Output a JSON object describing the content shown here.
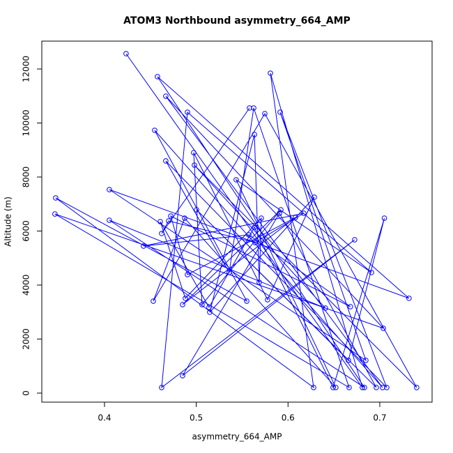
{
  "chart_data": {
    "type": "line",
    "title": "ATOM3 Northbound asymmetry_664_AMP",
    "xlabel": "asymmetry_664_AMP",
    "ylabel": "Altitude (m)",
    "color": "#0000ff",
    "marker": "circle",
    "x": [
      0.4235,
      0.681,
      0.5808,
      0.6279,
      0.3468,
      0.555,
      0.4547,
      0.703,
      0.4668,
      0.7038,
      0.346,
      0.6666,
      0.5626,
      0.5359,
      0.4668,
      0.7076,
      0.5914,
      0.6848,
      0.4053,
      0.7318,
      0.4577,
      0.6833,
      0.4053,
      0.6407,
      0.498,
      0.7402,
      0.5747,
      0.4532,
      0.4874,
      0.6521,
      0.5435,
      0.6909,
      0.4904,
      0.4623,
      0.6726,
      0.4851,
      0.5907,
      0.6962,
      0.5003,
      0.6658,
      0.705,
      0.6491,
      0.5634,
      0.5139,
      0.4608,
      0.4881,
      0.5709,
      0.5686,
      0.5634,
      0.5147,
      0.6286,
      0.5777,
      0.4972,
      0.5063,
      0.5922,
      0.4851,
      0.6081,
      0.4904,
      0.4722,
      0.668,
      0.5573,
      0.4425,
      0.6172,
      0.5641,
      0.4699,
      0.4623,
      0.558
    ],
    "values": [
      12568,
      206,
      11845,
      206,
      7226,
      3406,
      9729,
      206,
      10993,
      2400,
      6632,
      206,
      10555,
      4465,
      8594,
      206,
      10400,
      1213,
      7535,
      3510,
      11716,
      206,
      6400,
      3148,
      8439,
      206,
      10348,
      3406,
      6477,
      206,
      7897,
      4465,
      10400,
      206,
      5677,
      645,
      6658,
      206,
      6787,
      1213,
      6477,
      206,
      6142,
      3174,
      6348,
      3510,
      6477,
      4103,
      9574,
      2994,
      7252,
      3458,
      8903,
      3277,
      6787,
      3277,
      6503,
      4387,
      6555,
      3200,
      5858,
      5445,
      6658,
      5574,
      6374,
      5910,
      10555
    ],
    "xlim": [
      0.3317,
      0.757
    ],
    "ylim": [
      -335,
      13032
    ],
    "xticks": [
      0.4,
      0.5,
      0.6,
      0.7
    ],
    "yticks": [
      0,
      2000,
      4000,
      6000,
      8000,
      10000,
      12000
    ]
  }
}
